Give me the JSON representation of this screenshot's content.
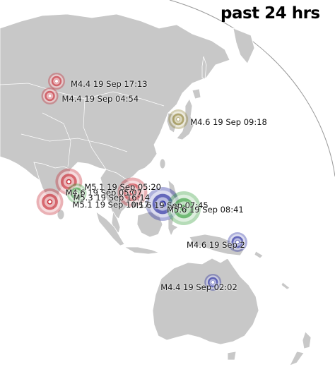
{
  "title": "past 24 hrs",
  "colors": {
    "land": "#c8c8c8",
    "ocean": "#ffffff",
    "coast": "#ffffff",
    "globe_edge": "#a0a0a0",
    "red": "#c4202a",
    "green": "#2e9a33",
    "blue": "#1a1f9a",
    "olive": "#8a7a2a"
  },
  "quakes": [
    {
      "magnitude": "M4.4",
      "label": "M4.4 19 Sep 17:13",
      "color": "red",
      "lat": 56.0,
      "lon": 88.0
    },
    {
      "magnitude": "M4.4",
      "label": "M4.4 19 Sep 04:54",
      "color": "red",
      "lat": 49.0,
      "lon": 85.0
    },
    {
      "magnitude": "M4.6",
      "label": "M4.6 19 Sep 09:18",
      "color": "olive",
      "lat": 38.0,
      "lon": 142.5
    },
    {
      "magnitude": "M5.1",
      "label": "M5.1 19 Sep 05:20",
      "color": "red",
      "lat": 8.5,
      "lon": 93.5
    },
    {
      "magnitude": "M4.6",
      "label": "M4.6 19 Sep 05:07",
      "color": "green",
      "lat": 3.0,
      "lon": 97.0
    },
    {
      "magnitude": "M5.3",
      "label": "M5.3 19 Sep 16:14",
      "color": "red",
      "lat": 3.5,
      "lon": 122.0
    },
    {
      "magnitude": "M5.6",
      "label": "M5.6 19 Sep 07:45",
      "color": "blue",
      "lat": -2.0,
      "lon": 135.5
    },
    {
      "magnitude": "M5.6",
      "label": "M5.6 19 Sep 08:41",
      "color": "green",
      "lat": -4.0,
      "lon": 145.0
    },
    {
      "magnitude": "M5.1",
      "label": "M5.1 19 Sep 10:17",
      "color": "red",
      "lat": -1.0,
      "lon": 85.0
    },
    {
      "magnitude": "M4.6",
      "label": "M4.6 19 Sep 2",
      "color": "blue",
      "lat": -20.0,
      "lon": 169.0
    },
    {
      "magnitude": "M4.4",
      "label": "M4.4 19 Sep 02:02",
      "color": "blue",
      "lat": -39.0,
      "lon": 158.0
    }
  ]
}
